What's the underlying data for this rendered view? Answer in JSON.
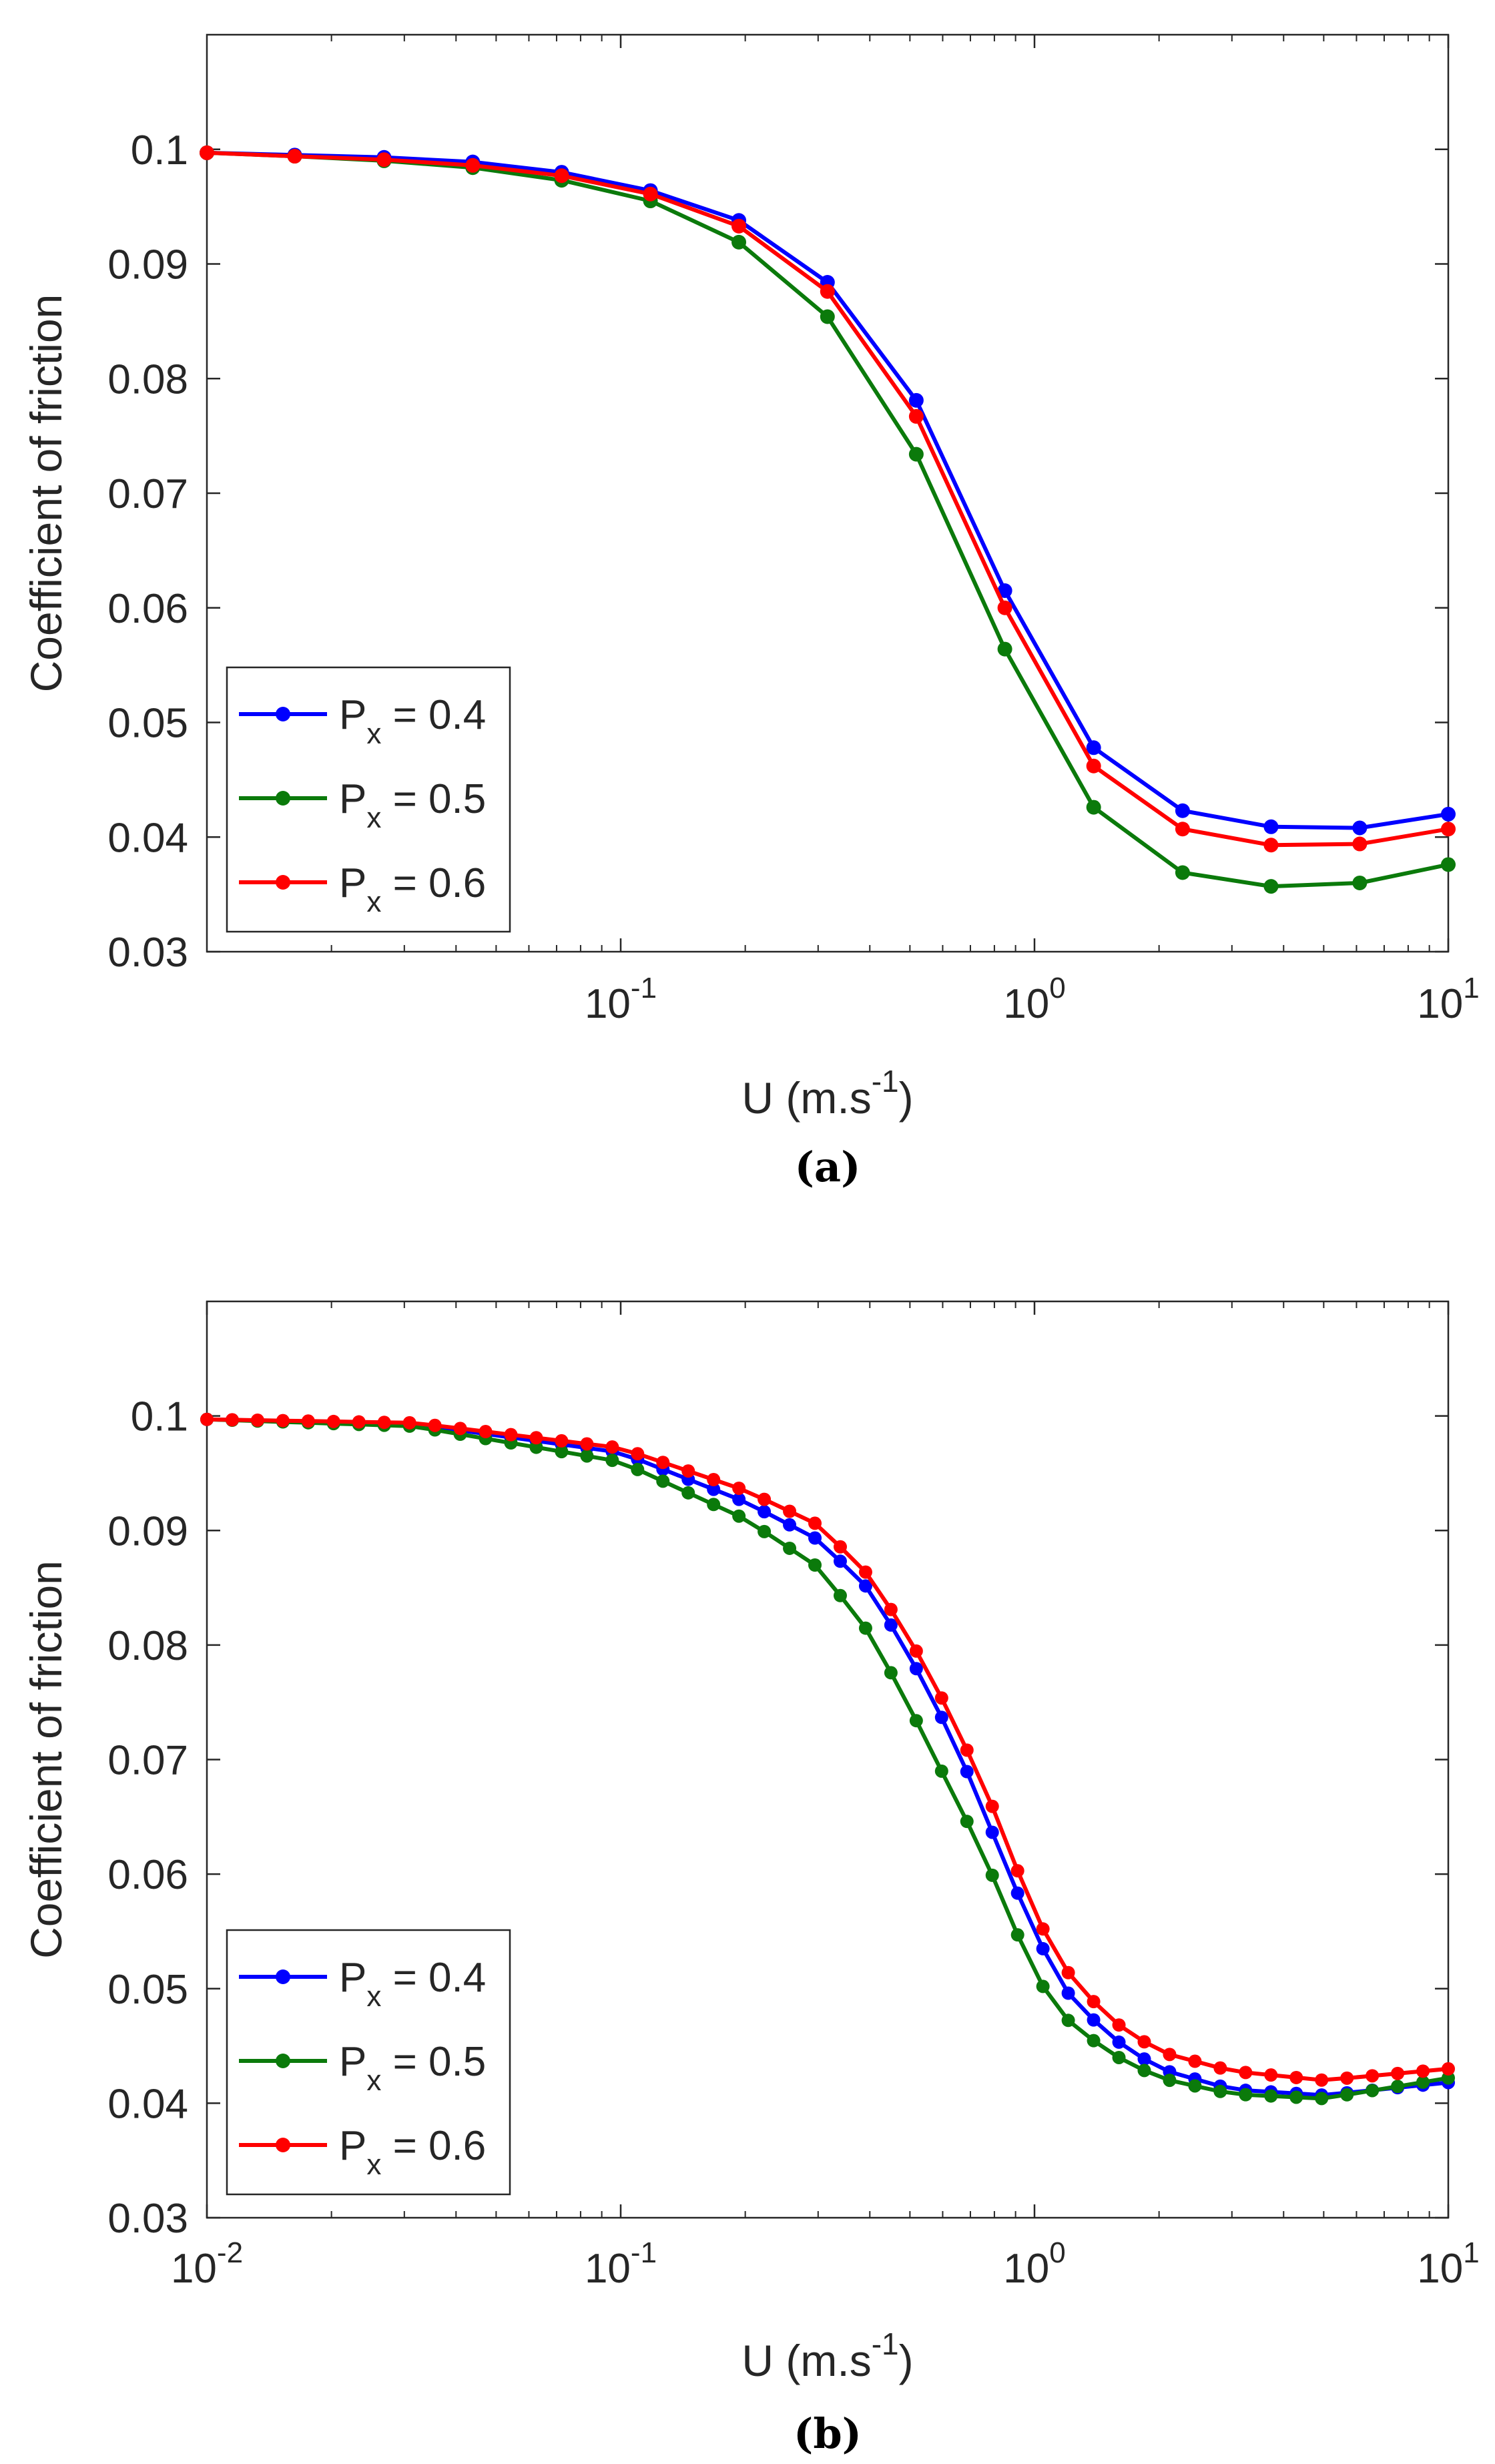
{
  "chart_data": [
    {
      "type": "line",
      "caption": "(a)",
      "xscale": "log",
      "xlim": [
        0.01,
        10
      ],
      "ylim": [
        0.03,
        0.11
      ],
      "xlabel_main": "U (m.s",
      "xlabel_sup": "-1",
      "xlabel_end": ")",
      "ylabel": "Coefficient of friction",
      "xticks": [
        {
          "value": 0.1,
          "base": "10",
          "exp": "-1"
        },
        {
          "value": 1,
          "base": "10",
          "exp": "0"
        },
        {
          "value": 10,
          "base": "10",
          "exp": "1"
        }
      ],
      "yticks": [
        {
          "value": 0.03,
          "label": "0.03"
        },
        {
          "value": 0.04,
          "label": "0.04"
        },
        {
          "value": 0.05,
          "label": "0.05"
        },
        {
          "value": 0.06,
          "label": "0.06"
        },
        {
          "value": 0.07,
          "label": "0.07"
        },
        {
          "value": 0.08,
          "label": "0.08"
        },
        {
          "value": 0.09,
          "label": "0.09"
        },
        {
          "value": 0.1,
          "label": "0.1"
        }
      ],
      "legend_position": "lower-left",
      "x": [
        0.01,
        0.0163,
        0.0268,
        0.0439,
        0.072,
        0.118,
        0.193,
        0.316,
        0.518,
        0.848,
        1.39,
        2.28,
        3.73,
        6.11,
        10
      ],
      "series": [
        {
          "name": "0.4",
          "color": "#0000ff",
          "values": [
            0.0997,
            0.0995,
            0.0993,
            0.0989,
            0.098,
            0.0964,
            0.0938,
            0.0884,
            0.0781,
            0.0615,
            0.0478,
            0.0423,
            0.0409,
            0.0408,
            0.042
          ]
        },
        {
          "name": "0.5",
          "color": "#0b7a0b",
          "values": [
            0.0997,
            0.0994,
            0.099,
            0.0984,
            0.0973,
            0.0955,
            0.0919,
            0.0854,
            0.0734,
            0.0564,
            0.0426,
            0.0369,
            0.0357,
            0.036,
            0.0376
          ]
        },
        {
          "name": "0.6",
          "color": "#ff0000",
          "values": [
            0.0997,
            0.0994,
            0.0991,
            0.0986,
            0.0977,
            0.0961,
            0.0933,
            0.0876,
            0.0767,
            0.06,
            0.0462,
            0.0407,
            0.0393,
            0.0394,
            0.0407
          ]
        }
      ]
    },
    {
      "type": "line",
      "caption": "(b)",
      "xscale": "log",
      "xlim": [
        0.01,
        10
      ],
      "ylim": [
        0.03,
        0.11
      ],
      "xlabel_main": "U (m.s",
      "xlabel_sup": "-1",
      "xlabel_end": ")",
      "ylabel": "Coefficient of friction",
      "xticks": [
        {
          "value": 0.01,
          "base": "10",
          "exp": "-2"
        },
        {
          "value": 0.1,
          "base": "10",
          "exp": "-1"
        },
        {
          "value": 1,
          "base": "10",
          "exp": "0"
        },
        {
          "value": 10,
          "base": "10",
          "exp": "1"
        }
      ],
      "yticks": [
        {
          "value": 0.03,
          "label": "0.03"
        },
        {
          "value": 0.04,
          "label": "0.04"
        },
        {
          "value": 0.05,
          "label": "0.05"
        },
        {
          "value": 0.06,
          "label": "0.06"
        },
        {
          "value": 0.07,
          "label": "0.07"
        },
        {
          "value": 0.08,
          "label": "0.08"
        },
        {
          "value": 0.09,
          "label": "0.09"
        },
        {
          "value": 0.1,
          "label": "0.1"
        }
      ],
      "legend_position": "lower-left",
      "x_log_start": -2,
      "x_log_end": 1,
      "x_count": 50,
      "series": [
        {
          "name": "0.4",
          "color": "#0000ff",
          "anchors_x": [
            0.01,
            0.0316,
            0.1,
            0.2,
            0.3,
            0.4,
            0.5,
            0.6,
            0.7,
            0.8,
            1.0,
            1.2,
            1.5,
            2.0,
            3.0,
            5.0,
            10
          ],
          "anchors_y": [
            0.0997,
            0.0993,
            0.0968,
            0.0925,
            0.0892,
            0.0848,
            0.079,
            0.0735,
            0.0683,
            0.0632,
            0.0548,
            0.0497,
            0.046,
            0.043,
            0.0412,
            0.0407,
            0.0418
          ]
        },
        {
          "name": "0.5",
          "color": "#0b7a0b",
          "anchors_x": [
            0.01,
            0.0316,
            0.1,
            0.2,
            0.3,
            0.4,
            0.5,
            0.6,
            0.7,
            0.8,
            1.0,
            1.2,
            1.5,
            2.0,
            3.0,
            5.0,
            10
          ],
          "anchors_y": [
            0.0997,
            0.0991,
            0.096,
            0.091,
            0.0868,
            0.081,
            0.0745,
            0.0688,
            0.064,
            0.0595,
            0.0512,
            0.0473,
            0.0445,
            0.0422,
            0.0408,
            0.0404,
            0.0422
          ]
        },
        {
          "name": "0.6",
          "color": "#ff0000",
          "anchors_x": [
            0.01,
            0.0316,
            0.1,
            0.2,
            0.3,
            0.4,
            0.5,
            0.6,
            0.7,
            0.8,
            1.0,
            1.2,
            1.5,
            2.0,
            3.0,
            5.0,
            10
          ],
          "anchors_y": [
            0.0997,
            0.0994,
            0.0972,
            0.0935,
            0.0905,
            0.086,
            0.0805,
            0.0752,
            0.0702,
            0.0655,
            0.0565,
            0.0515,
            0.0475,
            0.0445,
            0.0428,
            0.042,
            0.043
          ]
        }
      ]
    }
  ]
}
